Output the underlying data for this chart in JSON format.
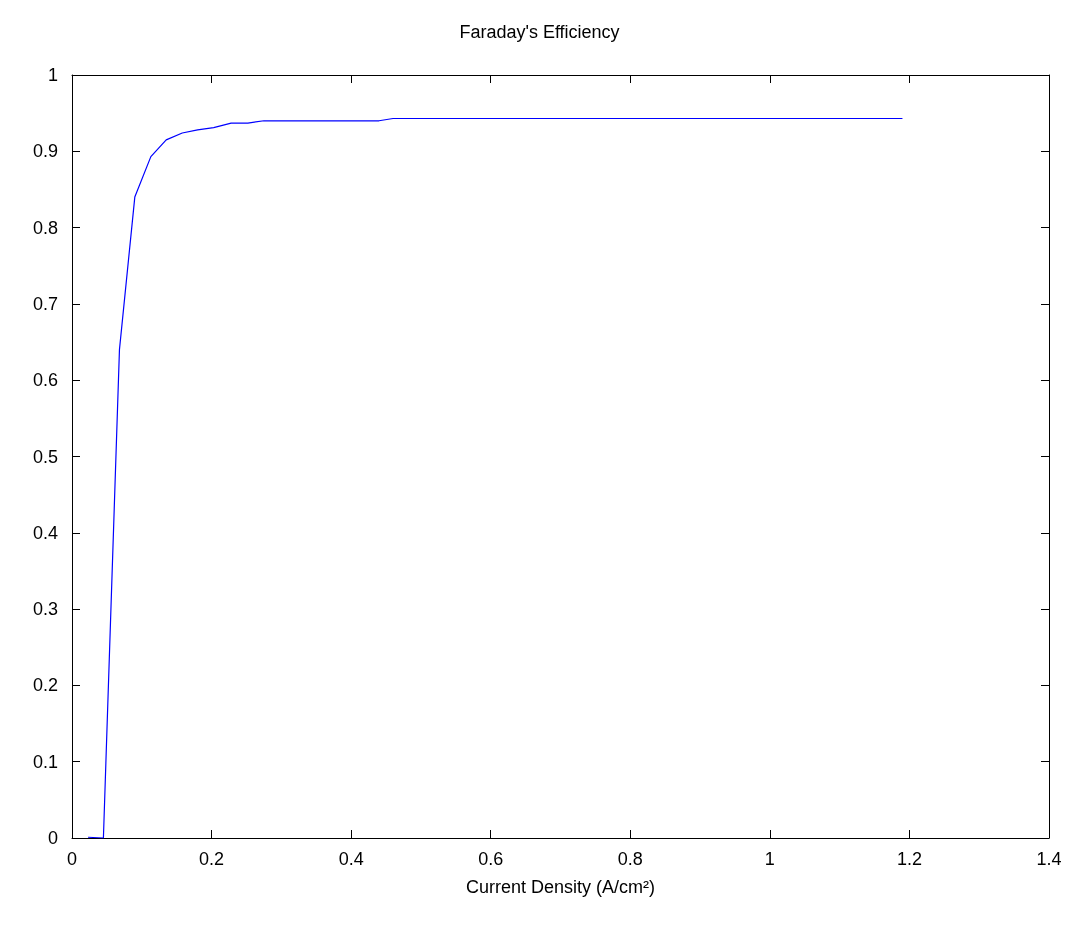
{
  "chart_data": {
    "type": "line",
    "title": "Faraday's Efficiency",
    "xlabel": "Current Density (A/cm²)",
    "series": [
      {
        "color": "#0000ff",
        "x": [
          0.023,
          0.045,
          0.068,
          0.09,
          0.113,
          0.135,
          0.158,
          0.18,
          0.203,
          0.228,
          0.252,
          0.275,
          0.44,
          0.46,
          1.19
        ],
        "values": [
          0.001,
          0,
          0.64,
          0.84,
          0.893,
          0.915,
          0.924,
          0.928,
          0.931,
          0.937,
          0.937,
          0.94,
          0.94,
          0.943,
          0.943
        ]
      }
    ],
    "xlim": [
      0,
      1.4
    ],
    "xticks": [
      0,
      0.2,
      0.4,
      0.6,
      0.8,
      1,
      1.2,
      1.4
    ],
    "ylim": [
      0,
      1
    ],
    "yticks": [
      0,
      0.1,
      0.2,
      0.3,
      0.4,
      0.5,
      0.6,
      0.7,
      0.8,
      0.9,
      1
    ],
    "grid": false,
    "marker": "none",
    "line_style": "solid"
  }
}
